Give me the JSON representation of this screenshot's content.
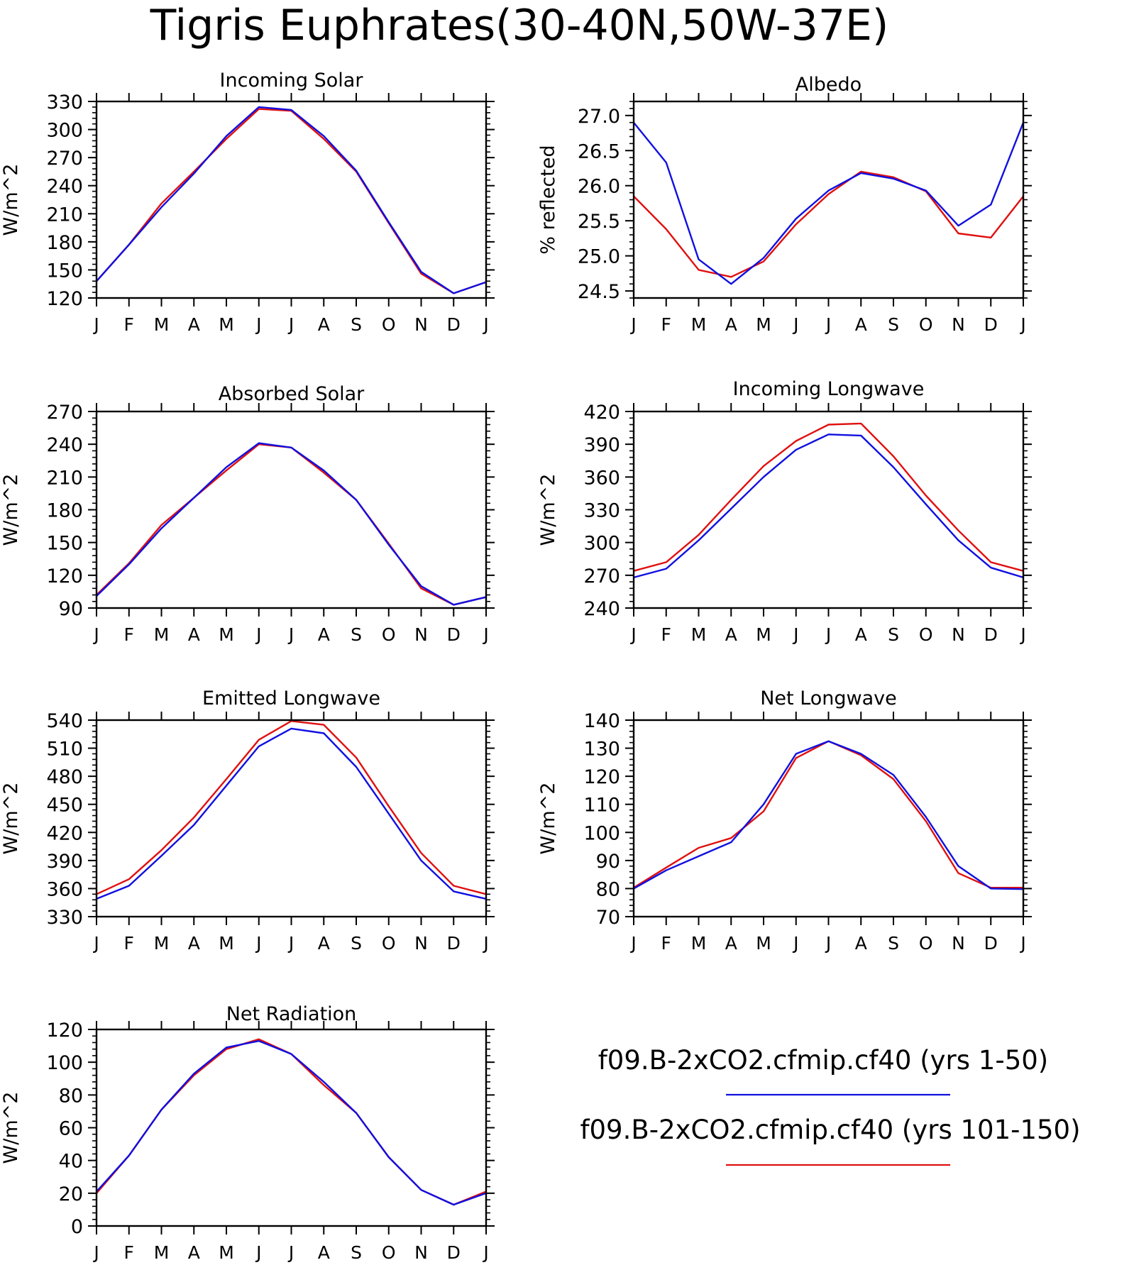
{
  "title": "Tigris Euphrates(30-40N,50W-37E)",
  "legend": {
    "entries": [
      {
        "label": "f09.B-2xCO2.cfmip.cf40 (yrs 1-50)",
        "color": "#1010e0"
      },
      {
        "label": "f09.B-2xCO2.cfmip.cf40 (yrs 101-150)",
        "color": "#e01010"
      }
    ]
  },
  "colors": {
    "series_1": "#1010e0",
    "series_2": "#e01010",
    "axis": "#000000"
  },
  "chart_data": [
    {
      "type": "line",
      "title": "Incoming Solar",
      "ylabel": "W/m^2",
      "categories": [
        "J",
        "F",
        "M",
        "A",
        "M",
        "J",
        "J",
        "A",
        "S",
        "O",
        "N",
        "D",
        "J"
      ],
      "ylim": [
        120,
        330
      ],
      "yticks": [
        120,
        150,
        180,
        210,
        240,
        270,
        300,
        330
      ],
      "ytick_labels": [
        "120",
        "150",
        "180",
        "210",
        "240",
        "270",
        "300",
        "330"
      ],
      "series": [
        {
          "values": [
            138,
            177,
            217,
            253,
            293,
            324,
            321,
            293,
            256,
            201,
            148,
            125,
            137
          ]
        },
        {
          "values": [
            138,
            177,
            221,
            255,
            290,
            322,
            320,
            290,
            255,
            200,
            146,
            125,
            137
          ]
        }
      ]
    },
    {
      "type": "line",
      "title": "Albedo",
      "ylabel": "% reflected",
      "categories": [
        "J",
        "F",
        "M",
        "A",
        "M",
        "J",
        "J",
        "A",
        "S",
        "O",
        "N",
        "D",
        "J"
      ],
      "ylim": [
        24.4,
        27.2
      ],
      "yticks": [
        24.5,
        25.0,
        25.5,
        26.0,
        26.5,
        27.0
      ],
      "ytick_labels": [
        "24.5",
        "25.0",
        "25.5",
        "26.0",
        "26.5",
        "27.0"
      ],
      "series": [
        {
          "values": [
            26.9,
            26.33,
            24.95,
            24.6,
            24.97,
            25.53,
            25.93,
            26.18,
            26.1,
            25.93,
            25.43,
            25.73,
            26.9
          ]
        },
        {
          "values": [
            25.85,
            25.38,
            24.8,
            24.7,
            24.92,
            25.45,
            25.88,
            26.2,
            26.12,
            25.92,
            25.32,
            25.26,
            25.85
          ]
        }
      ]
    },
    {
      "type": "line",
      "title": "Absorbed Solar",
      "ylabel": "W/m^2",
      "categories": [
        "J",
        "F",
        "M",
        "A",
        "M",
        "J",
        "J",
        "A",
        "S",
        "O",
        "N",
        "D",
        "J"
      ],
      "ylim": [
        90,
        270
      ],
      "yticks": [
        90,
        120,
        150,
        180,
        210,
        240,
        270
      ],
      "ytick_labels": [
        "90",
        "120",
        "150",
        "180",
        "210",
        "240",
        "270"
      ],
      "series": [
        {
          "values": [
            101,
            130,
            163,
            191,
            219,
            241,
            237,
            216,
            189,
            148,
            110,
            93,
            100
          ]
        },
        {
          "values": [
            102,
            131,
            166,
            191,
            216,
            240,
            237,
            214,
            189,
            149,
            108,
            93,
            100
          ]
        }
      ]
    },
    {
      "type": "line",
      "title": "Incoming Longwave",
      "ylabel": "W/m^2",
      "categories": [
        "J",
        "F",
        "M",
        "A",
        "M",
        "J",
        "J",
        "A",
        "S",
        "O",
        "N",
        "D",
        "J"
      ],
      "ylim": [
        240,
        420
      ],
      "yticks": [
        240,
        270,
        300,
        330,
        360,
        390,
        420
      ],
      "ytick_labels": [
        "240",
        "270",
        "300",
        "330",
        "360",
        "390",
        "420"
      ],
      "series": [
        {
          "values": [
            268,
            276,
            302,
            331,
            360,
            385,
            399,
            398,
            369,
            335,
            302,
            277,
            268
          ]
        },
        {
          "values": [
            274,
            282,
            307,
            339,
            370,
            393,
            408,
            409,
            379,
            343,
            311,
            282,
            274
          ]
        }
      ]
    },
    {
      "type": "line",
      "title": "Emitted Longwave",
      "ylabel": "W/m^2",
      "categories": [
        "J",
        "F",
        "M",
        "A",
        "M",
        "J",
        "J",
        "A",
        "S",
        "O",
        "N",
        "D",
        "J"
      ],
      "ylim": [
        330,
        540
      ],
      "yticks": [
        330,
        360,
        390,
        420,
        450,
        480,
        510,
        540
      ],
      "ytick_labels": [
        "330",
        "360",
        "390",
        "420",
        "450",
        "480",
        "510",
        "540"
      ],
      "series": [
        {
          "values": [
            349,
            363,
            395,
            428,
            470,
            512,
            531,
            526,
            490,
            440,
            390,
            357,
            349
          ]
        },
        {
          "values": [
            354,
            370,
            401,
            436,
            477,
            519,
            539,
            535,
            500,
            448,
            398,
            363,
            354
          ]
        }
      ]
    },
    {
      "type": "line",
      "title": "Net Longwave",
      "ylabel": "W/m^2",
      "categories": [
        "J",
        "F",
        "M",
        "A",
        "M",
        "J",
        "J",
        "A",
        "S",
        "O",
        "N",
        "D",
        "J"
      ],
      "ylim": [
        70,
        140
      ],
      "yticks": [
        70,
        80,
        90,
        100,
        110,
        120,
        130,
        140
      ],
      "ytick_labels": [
        "70",
        "80",
        "90",
        "100",
        "110",
        "120",
        "130",
        "140"
      ],
      "series": [
        {
          "values": [
            80,
            86.5,
            91.5,
            96.5,
            110,
            128,
            132.5,
            128,
            120.5,
            105.5,
            88,
            80,
            79.8
          ]
        },
        {
          "values": [
            80.3,
            87.5,
            94.5,
            98,
            107.5,
            126.5,
            132.5,
            127.5,
            119,
            104,
            85.5,
            80.3,
            80.3
          ]
        }
      ]
    },
    {
      "type": "line",
      "title": "Net Radiation",
      "ylabel": "W/m^2",
      "categories": [
        "J",
        "F",
        "M",
        "A",
        "M",
        "J",
        "J",
        "A",
        "S",
        "O",
        "N",
        "D",
        "J"
      ],
      "ylim": [
        0,
        120
      ],
      "yticks": [
        0,
        20,
        40,
        60,
        80,
        100,
        120
      ],
      "ytick_labels": [
        "0",
        "20",
        "40",
        "60",
        "80",
        "100",
        "120"
      ],
      "series": [
        {
          "values": [
            21,
            43,
            71,
            93,
            109,
            113,
            105,
            88,
            69,
            42,
            22,
            13,
            20
          ]
        },
        {
          "values": [
            20,
            43,
            71,
            92,
            108,
            114,
            105,
            86,
            69,
            42,
            22,
            13,
            21
          ]
        }
      ]
    }
  ]
}
